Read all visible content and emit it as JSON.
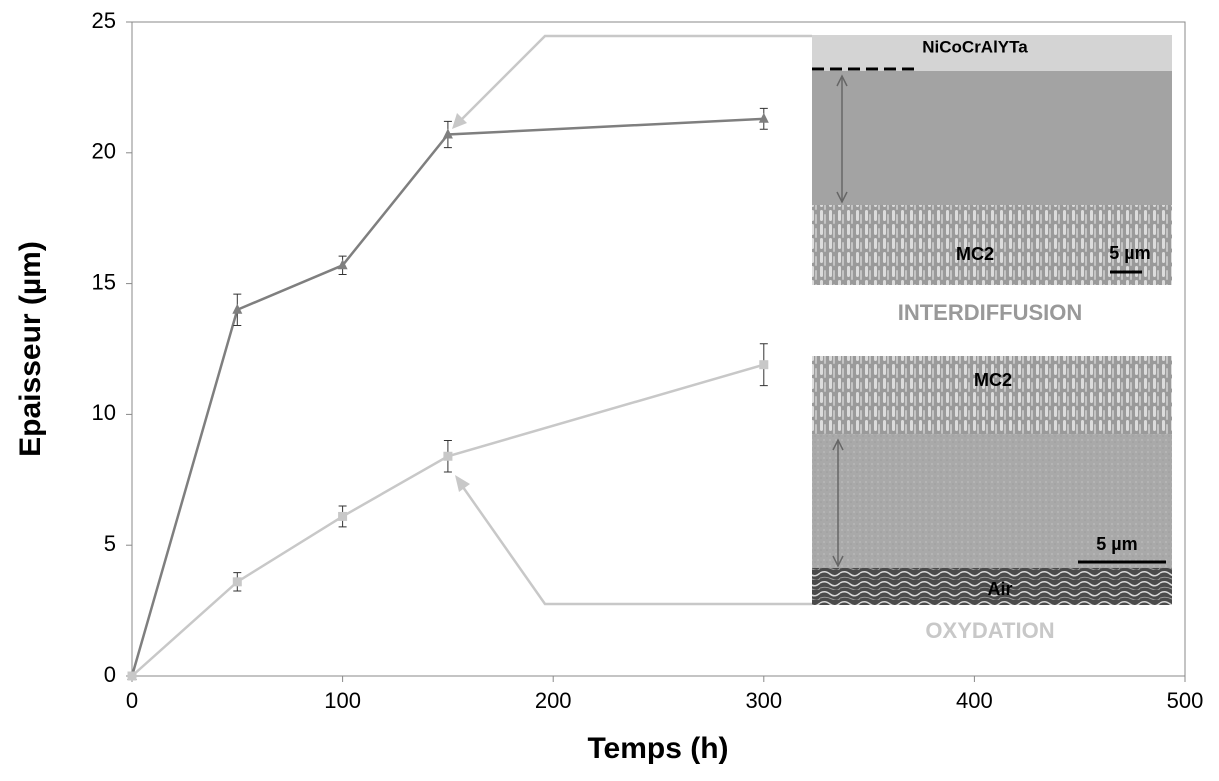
{
  "chart_data": {
    "type": "line",
    "xlabel": "Temps (h)",
    "ylabel": "Epaisseur (µm)",
    "xlim": [
      0,
      500
    ],
    "xticks": [
      0,
      100,
      200,
      300,
      400,
      500
    ],
    "ylim": [
      0,
      25
    ],
    "yticks": [
      0,
      5,
      10,
      15,
      20,
      25
    ],
    "x": [
      0,
      50,
      100,
      150,
      300
    ],
    "series": [
      {
        "name": "INTERDIFFUSION",
        "color": "#7f7f7f",
        "marker": "triangle",
        "values": [
          0,
          14.0,
          15.7,
          20.7,
          21.3
        ],
        "errors": [
          0,
          0.6,
          0.35,
          0.5,
          0.4
        ]
      },
      {
        "name": "OXYDATION",
        "color": "#c8c8c8",
        "marker": "square",
        "values": [
          0,
          3.6,
          6.1,
          8.4,
          11.9
        ],
        "errors": [
          0,
          0.35,
          0.4,
          0.6,
          0.8
        ]
      }
    ],
    "annotations": [
      "NiCoCrAlYTa",
      "MC2",
      "5 µm",
      "MC2",
      "5 µm",
      "Air"
    ]
  }
}
